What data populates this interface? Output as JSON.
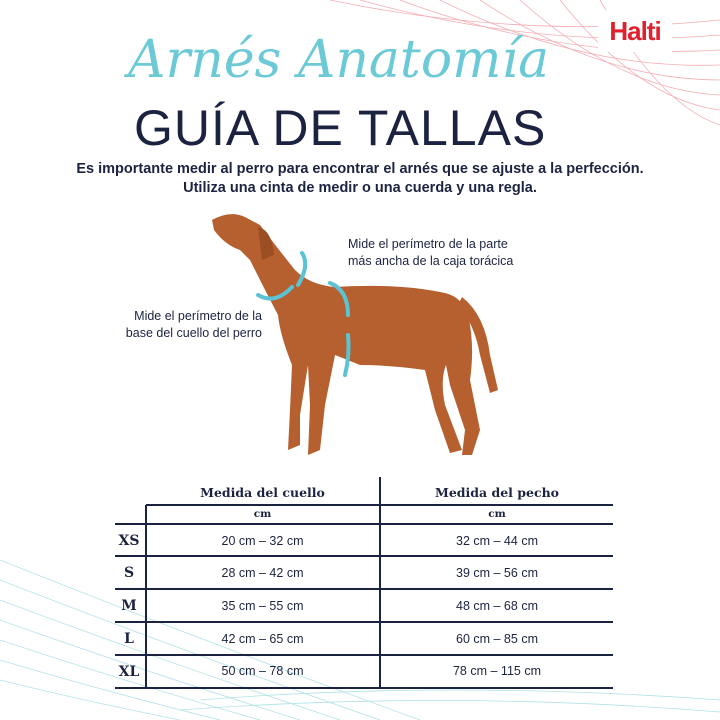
{
  "brand": {
    "logo": "Halti",
    "color": "#e0202e"
  },
  "header": {
    "script_title": "Arnés Anatomía",
    "title": "GUÍA DE TALLAS"
  },
  "intro": [
    "Es importante medir al perro para encontrar el arnés que se ajuste a la perfección.",
    "Utiliza una cinta de medir o una cuerda y una regla."
  ],
  "annotations": {
    "chest": [
      "Mide el perímetro de la parte",
      "más ancha de la caja torácica"
    ],
    "neck": [
      "Mide el perímetro de la",
      "base del cuello del perro"
    ]
  },
  "table": {
    "columns": [
      "Medida del cuello",
      "Medida del pecho"
    ],
    "units": [
      "cm",
      "cm"
    ],
    "rows": [
      {
        "size": "XS",
        "neck": "20 cm – 32 cm",
        "chest": "32 cm – 44 cm"
      },
      {
        "size": "S",
        "neck": "28 cm – 42 cm",
        "chest": "39 cm – 56 cm"
      },
      {
        "size": "M",
        "neck": "35 cm – 55 cm",
        "chest": "48 cm – 68 cm"
      },
      {
        "size": "L",
        "neck": "42 cm – 65 cm",
        "chest": "60 cm – 85 cm"
      },
      {
        "size": "XL",
        "neck": "50 cm – 78 cm",
        "chest": "78 cm – 115 cm"
      }
    ]
  },
  "colors": {
    "accent": "#6ccad6",
    "navy": "#1c2340",
    "dog": "#b5602e"
  }
}
